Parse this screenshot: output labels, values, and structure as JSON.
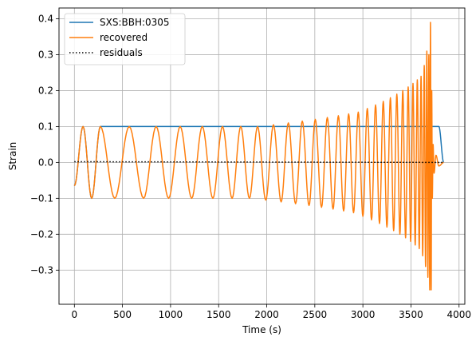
{
  "chart_data": {
    "type": "line",
    "title": "",
    "xlabel": "Time (s)",
    "ylabel": "Strain",
    "xlim": [
      -160,
      4060
    ],
    "ylim": [
      -0.395,
      0.43
    ],
    "xticks": [
      0,
      500,
      1000,
      1500,
      2000,
      2500,
      3000,
      3500,
      4000
    ],
    "yticks": [
      -0.3,
      -0.2,
      -0.1,
      0.0,
      0.1,
      0.2,
      0.3,
      0.4
    ],
    "xtick_labels": [
      "0",
      "500",
      "1000",
      "1500",
      "2000",
      "2500",
      "3000",
      "3500",
      "4000"
    ],
    "ytick_labels": [
      "−0.3",
      "−0.2",
      "−0.1",
      "0.0",
      "0.1",
      "0.2",
      "0.3",
      "0.4"
    ],
    "grid": true,
    "legend_position": "upper-left",
    "series": [
      {
        "name": "SXS:BBH:0305",
        "color": "#1f77b4",
        "style": "solid",
        "x": [
          0,
          90,
          180,
          270,
          420,
          570,
          720,
          850,
          980,
          1100,
          1220,
          1330,
          1440,
          1540,
          1640,
          1730,
          1820,
          1905,
          1990,
          2070,
          2150,
          2225,
          2300,
          2370,
          2440,
          2505,
          2570,
          2630,
          2690,
          2745,
          2800,
          2852,
          2903,
          2952,
          3000,
          3046,
          3090,
          3132,
          3173,
          3212,
          3250,
          3286,
          3320,
          3353,
          3385,
          3415,
          3444,
          3471,
          3497,
          3521,
          3544,
          3566,
          3586,
          3605,
          3622,
          3638,
          3652,
          3665,
          3676,
          3686,
          3695,
          3703,
          3710,
          3716,
          3722,
          3730,
          3740,
          3760,
          3790,
          3840
        ],
        "y": [
          -0.065,
          0.1,
          -0.1,
          0.1,
          0.1,
          0.1,
          0.1,
          0.1,
          0.1,
          0.1,
          0.1,
          0.1,
          0.1,
          0.1,
          0.1,
          0.1,
          0.1,
          0.1,
          0.1,
          0.1,
          0.1,
          0.1,
          0.1,
          0.1,
          0.1,
          0.1,
          0.1,
          0.1,
          0.1,
          0.1,
          0.1,
          0.1,
          0.1,
          0.1,
          0.1,
          0.1,
          0.1,
          0.1,
          0.1,
          0.1,
          0.1,
          0.1,
          0.1,
          0.1,
          0.1,
          0.1,
          0.1,
          0.1,
          0.1,
          0.1,
          0.1,
          0.1,
          0.1,
          0.1,
          0.1,
          0.1,
          0.1,
          0.1,
          0.1,
          0.1,
          0.1,
          0.1,
          0.1,
          0.1,
          0.1,
          0.1,
          0.1,
          0.1,
          0.1,
          0.0
        ]
      },
      {
        "name": "recovered",
        "color": "#ff7f0e",
        "style": "solid",
        "x": [
          0,
          90,
          180,
          270,
          420,
          570,
          720,
          850,
          980,
          1100,
          1220,
          1330,
          1440,
          1540,
          1640,
          1730,
          1820,
          1905,
          1990,
          2070,
          2150,
          2225,
          2300,
          2370,
          2440,
          2505,
          2570,
          2630,
          2690,
          2745,
          2800,
          2852,
          2903,
          2952,
          3000,
          3046,
          3090,
          3132,
          3173,
          3212,
          3250,
          3286,
          3320,
          3353,
          3385,
          3415,
          3444,
          3471,
          3497,
          3521,
          3544,
          3566,
          3586,
          3605,
          3622,
          3638,
          3652,
          3665,
          3676,
          3686,
          3695,
          3703,
          3710,
          3716,
          3722,
          3730,
          3740,
          3760,
          3790,
          3840
        ],
        "y": [
          -0.065,
          0.1,
          -0.1,
          0.1,
          -0.1,
          0.1,
          -0.1,
          0.1,
          -0.1,
          0.1,
          -0.1,
          0.1,
          -0.1,
          0.1,
          -0.1,
          0.1,
          -0.1,
          0.1,
          -0.105,
          0.105,
          -0.11,
          0.11,
          -0.115,
          0.115,
          -0.12,
          0.12,
          -0.125,
          0.125,
          -0.13,
          0.13,
          -0.135,
          0.135,
          -0.14,
          0.14,
          -0.15,
          0.15,
          -0.16,
          0.16,
          -0.17,
          0.17,
          -0.18,
          0.18,
          -0.19,
          0.19,
          -0.2,
          0.2,
          -0.21,
          0.21,
          -0.22,
          0.22,
          -0.23,
          0.23,
          -0.24,
          0.24,
          -0.26,
          0.27,
          -0.29,
          0.31,
          -0.32,
          0.3,
          -0.355,
          0.39,
          -0.355,
          0.2,
          -0.1,
          0.05,
          -0.03,
          0.02,
          -0.01,
          0.0
        ]
      },
      {
        "name": "residuals",
        "color": "#000000",
        "style": "dotted",
        "x": [
          0,
          3840
        ],
        "y": [
          0.002,
          0.0
        ]
      }
    ]
  }
}
